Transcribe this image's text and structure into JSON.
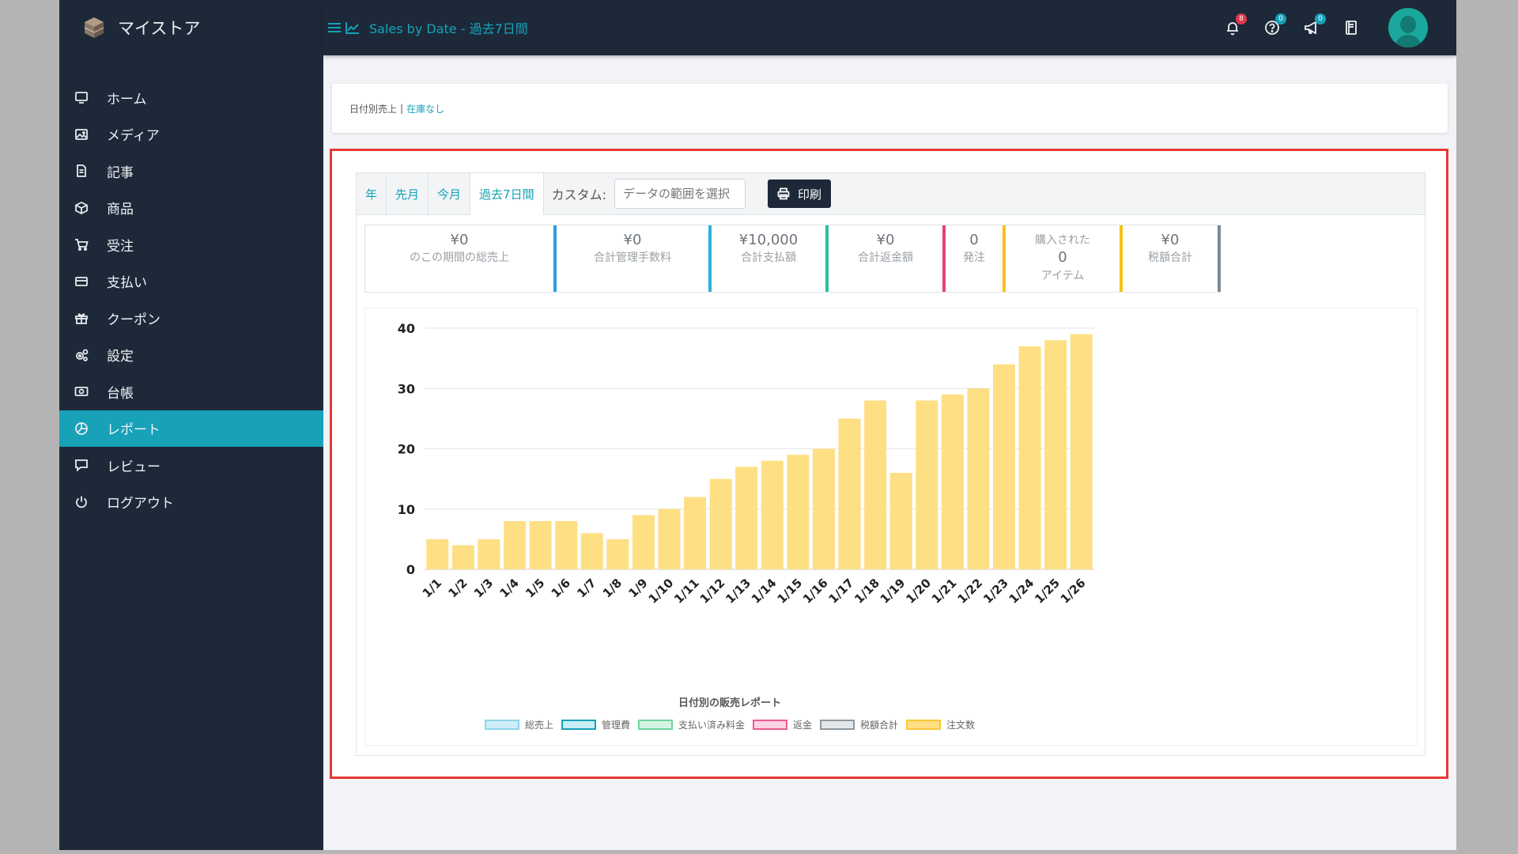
{
  "app": {
    "brand": "マイストア",
    "page_title": "Sales by Date - 過去7日間"
  },
  "sidebar": {
    "items": [
      {
        "label": "ホーム",
        "icon": "monitor-icon",
        "active": false
      },
      {
        "label": "メディア",
        "icon": "image-icon",
        "active": false
      },
      {
        "label": "記事",
        "icon": "document-icon",
        "active": false
      },
      {
        "label": "商品",
        "icon": "box-icon",
        "active": false
      },
      {
        "label": "受注",
        "icon": "cart-icon",
        "active": false
      },
      {
        "label": "支払い",
        "icon": "credit-card-icon",
        "active": false
      },
      {
        "label": "クーポン",
        "icon": "gift-icon",
        "active": false
      },
      {
        "label": "設定",
        "icon": "gears-icon",
        "active": false
      },
      {
        "label": "台帳",
        "icon": "money-icon",
        "active": false
      },
      {
        "label": "レポート",
        "icon": "pie-chart-icon",
        "active": true
      },
      {
        "label": "レビュー",
        "icon": "comment-icon",
        "active": false
      },
      {
        "label": "ログアウト",
        "icon": "power-icon",
        "active": false
      }
    ]
  },
  "topbar": {
    "notifications_badge": "8",
    "help_badge": "0",
    "announce_badge": "0",
    "colors": {
      "bg": "#1d2939",
      "accent": "#17a2b8"
    }
  },
  "breadcrumb": {
    "current": "日付別売上",
    "separator": "|",
    "link": "在庫なし"
  },
  "tabs": [
    {
      "label": "年",
      "active": false
    },
    {
      "label": "先月",
      "active": false
    },
    {
      "label": "今月",
      "active": false
    },
    {
      "label": "過去7日間",
      "active": true
    }
  ],
  "custom": {
    "label": "カスタム:",
    "placeholder": "データの範囲を選択"
  },
  "print_label": "印刷",
  "stats": [
    {
      "value": "¥0",
      "label": "のこの期間の総売上",
      "color": "#2d9ee0"
    },
    {
      "value": "¥0",
      "label": "合計管理手数料",
      "color": "#29b3d9"
    },
    {
      "value": "¥10,000",
      "label": "合計支払額",
      "color": "#23c3a0"
    },
    {
      "value": "¥0",
      "label": "合計返金額",
      "color": "#e8407f"
    },
    {
      "value": "0",
      "label": "発注",
      "color": "#f5c21b"
    },
    {
      "prefix": "購入された",
      "value": "0",
      "label": "アイテム",
      "color": "#f5c21b"
    },
    {
      "value": "¥0",
      "label": "税額合計",
      "color": "#7d8a94"
    }
  ],
  "chart_data": {
    "type": "bar",
    "title": "日付別の販売レポート",
    "categories": [
      "1/1",
      "1/2",
      "1/3",
      "1/4",
      "1/5",
      "1/6",
      "1/7",
      "1/8",
      "1/9",
      "1/10",
      "1/11",
      "1/12",
      "1/13",
      "1/14",
      "1/15",
      "1/16",
      "1/17",
      "1/18",
      "1/19",
      "1/20",
      "1/21",
      "1/22",
      "1/23",
      "1/24",
      "1/25",
      "1/26"
    ],
    "series": [
      {
        "name": "注文数",
        "values": [
          5,
          4,
          5,
          8,
          8,
          8,
          6,
          5,
          9,
          10,
          12,
          15,
          17,
          18,
          19,
          20,
          25,
          28,
          16,
          28,
          29,
          30,
          34,
          37,
          38,
          39
        ],
        "color": "#fedf84"
      }
    ],
    "ylim": [
      0,
      40
    ],
    "yticks": [
      0,
      10,
      20,
      30,
      40
    ],
    "grid": true,
    "legend_position": "bottom",
    "legend": [
      {
        "name": "総売上",
        "fill": "#cdeef8",
        "border": "#8fd3ea"
      },
      {
        "name": "管理費",
        "fill": "#c7eef3",
        "border": "#17a2b8"
      },
      {
        "name": "支払い済み料金",
        "fill": "#d4f4e2",
        "border": "#6fd49c"
      },
      {
        "name": "返金",
        "fill": "#fbd3e2",
        "border": "#ea5c92"
      },
      {
        "name": "税額合計",
        "fill": "#e3e7ea",
        "border": "#8e989f"
      },
      {
        "name": "注文数",
        "fill": "#fedf84",
        "border": "#f9c83a"
      }
    ]
  }
}
